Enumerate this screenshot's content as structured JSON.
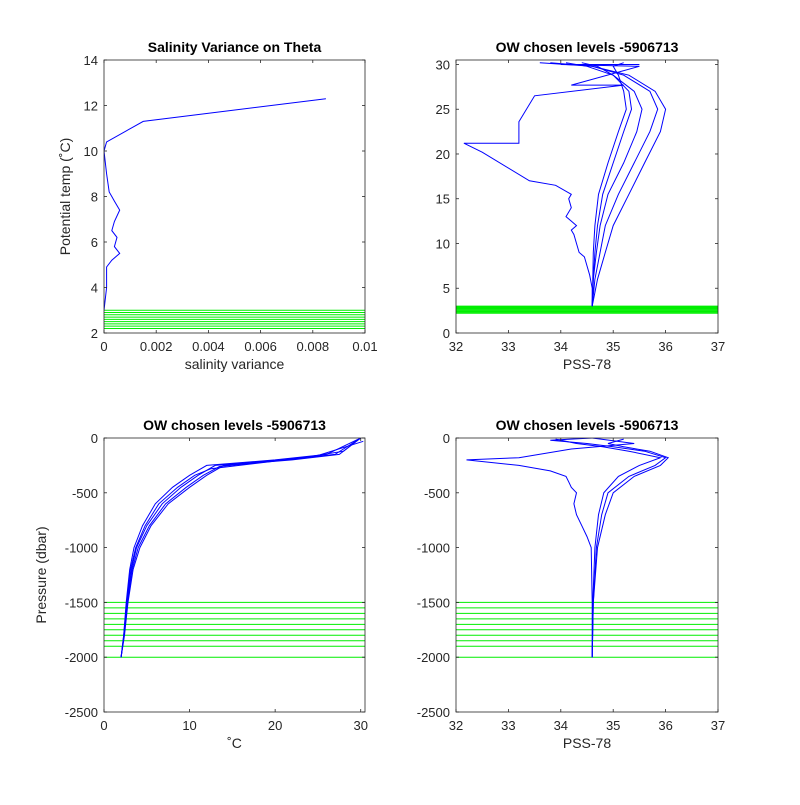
{
  "figure": {
    "panels": [
      {
        "title": "Salinity Variance on Theta",
        "xlabel": "salinity variance",
        "ylabel": "Potential temp (˚C)"
      },
      {
        "title": "OW chosen levels -5906713",
        "xlabel": "PSS-78",
        "ylabel": ""
      },
      {
        "title": "OW chosen levels -5906713",
        "xlabel": "˚C",
        "ylabel": "Pressure (dbar)"
      },
      {
        "title": "OW chosen levels -5906713",
        "xlabel": "PSS-78",
        "ylabel": ""
      }
    ]
  },
  "colors": {
    "profile": "#0000ff",
    "levels": "#00ee00",
    "axes": "#262626"
  },
  "chart_data": [
    {
      "type": "line",
      "title": "Salinity Variance on Theta",
      "xlabel": "salinity variance",
      "ylabel": "Potential temp (˚C)",
      "xlim": [
        0,
        0.01
      ],
      "ylim": [
        2,
        14
      ],
      "xticks": [
        0,
        0.002,
        0.004,
        0.006,
        0.008,
        0.01
      ],
      "xticklabels": [
        "0",
        "0.002",
        "0.004",
        "0.006",
        "0.008",
        "0.01"
      ],
      "yticks": [
        2,
        4,
        6,
        8,
        10,
        12,
        14
      ],
      "yticklabels": [
        "2",
        "4",
        "6",
        "8",
        "10",
        "12",
        "14"
      ],
      "grid": false,
      "series": [
        {
          "x": [
            0.0085,
            0.0015,
            0.0001,
            0.0,
            0.0001,
            0.0002,
            0.0003,
            0.0004,
            0.0006,
            0.0004,
            0.0003,
            0.0005,
            0.0004,
            0.0006,
            0.0003,
            0.0001,
            0.0001,
            0.0
          ],
          "y": [
            12.3,
            11.3,
            10.4,
            10.0,
            9.0,
            8.2,
            8.0,
            7.8,
            7.4,
            6.9,
            6.5,
            6.2,
            5.8,
            5.5,
            5.2,
            4.9,
            4.0,
            3.0
          ]
        }
      ],
      "levels": [
        2.2,
        2.3,
        2.4,
        2.5,
        2.6,
        2.7,
        2.8,
        2.9,
        3.0
      ]
    },
    {
      "type": "line",
      "title": "OW chosen levels -5906713",
      "xlabel": "PSS-78",
      "ylabel": "",
      "xlim": [
        32,
        37
      ],
      "ylim": [
        0,
        30.5
      ],
      "xticks": [
        32,
        33,
        34,
        35,
        36,
        37
      ],
      "xticklabels": [
        "32",
        "33",
        "34",
        "35",
        "36",
        "37"
      ],
      "yticks": [
        0,
        5,
        10,
        15,
        20,
        25,
        30
      ],
      "yticklabels": [
        "0",
        "5",
        "10",
        "15",
        "20",
        "25",
        "30"
      ],
      "grid": false,
      "series": [
        {
          "x": [
            34.6,
            34.6,
            34.55,
            34.5,
            34.45,
            34.35,
            34.3,
            34.25,
            34.2,
            34.3,
            34.2,
            34.1,
            34.2,
            34.15,
            34.2,
            33.9,
            33.4,
            32.5,
            32.15,
            33.2,
            33.2,
            33.5,
            35.2,
            34.2,
            35.5,
            34.0,
            35.5
          ],
          "y": [
            3.0,
            5.0,
            6.5,
            7.5,
            8.5,
            9.0,
            10.0,
            11.0,
            11.5,
            12.0,
            12.5,
            13.0,
            14.0,
            15.0,
            15.5,
            16.5,
            17.0,
            20.2,
            21.2,
            21.2,
            23.6,
            26.5,
            27.7,
            27.7,
            29.8,
            30.0,
            30.0
          ]
        },
        {
          "x": [
            34.6,
            34.7,
            34.85,
            35.0,
            35.3,
            35.6,
            35.9,
            36.0,
            35.8,
            35.3,
            34.6,
            33.6
          ],
          "y": [
            3.0,
            6.0,
            9.0,
            12.0,
            15.5,
            19.0,
            22.5,
            25.0,
            27.0,
            28.8,
            29.8,
            30.2
          ]
        },
        {
          "x": [
            34.6,
            34.65,
            34.75,
            34.85,
            35.1,
            35.4,
            35.7,
            35.85,
            35.7,
            35.2,
            34.6,
            33.8
          ],
          "y": [
            3.0,
            6.0,
            9.0,
            12.0,
            15.5,
            19.0,
            22.5,
            25.0,
            27.0,
            28.8,
            29.8,
            30.2
          ]
        },
        {
          "x": [
            34.6,
            34.62,
            34.68,
            34.75,
            34.9,
            35.2,
            35.45,
            35.55,
            35.4,
            35.0,
            34.5,
            34.1
          ],
          "y": [
            3.0,
            6.0,
            9.0,
            12.0,
            15.5,
            19.0,
            22.5,
            25.0,
            27.0,
            28.8,
            29.8,
            30.2
          ]
        },
        {
          "x": [
            34.6,
            34.62,
            34.65,
            34.7,
            34.8,
            35.0,
            35.2,
            35.35,
            35.3,
            35.0,
            34.7,
            34.4
          ],
          "y": [
            3.0,
            6.0,
            9.0,
            12.0,
            15.5,
            19.0,
            22.5,
            25.0,
            27.0,
            28.8,
            29.8,
            30.2
          ]
        },
        {
          "x": [
            34.6,
            34.61,
            34.62,
            34.65,
            34.72,
            34.9,
            35.1,
            35.25,
            35.2,
            35.1,
            35.0,
            35.2
          ],
          "y": [
            3.0,
            6.0,
            9.0,
            12.0,
            15.5,
            19.0,
            22.5,
            25.0,
            27.0,
            28.8,
            29.8,
            30.2
          ]
        }
      ],
      "levels": [
        2.2,
        2.3,
        2.4,
        2.5,
        2.6,
        2.7,
        2.8,
        2.9,
        3.0
      ]
    },
    {
      "type": "line",
      "title": "OW chosen levels -5906713",
      "xlabel": "˚C",
      "ylabel": "Pressure (dbar)",
      "xlim": [
        0,
        30.5
      ],
      "ylim": [
        -2500,
        0
      ],
      "xticks": [
        0,
        10,
        20,
        30
      ],
      "xticklabels": [
        "0",
        "10",
        "20",
        "30"
      ],
      "yticks": [
        -2500,
        -2000,
        -1500,
        -1000,
        -500,
        0
      ],
      "yticklabels": [
        "-2500",
        "-2000",
        "-1500",
        "-1000",
        "-500",
        "0"
      ],
      "grid": false,
      "series": [
        {
          "x": [
            2.0,
            2.3,
            2.6,
            3.0,
            3.5,
            4.5,
            6.0,
            8.0,
            10.0,
            12.0,
            20.0,
            26.0,
            30.0
          ],
          "y": [
            -2000,
            -1800,
            -1500,
            -1200,
            -1000,
            -800,
            -600,
            -450,
            -340,
            -250,
            -200,
            -150,
            0
          ]
        },
        {
          "x": [
            2.0,
            2.35,
            2.7,
            3.2,
            3.8,
            5.0,
            6.8,
            9.0,
            11.0,
            13.0,
            21.0,
            27.0,
            30.0
          ],
          "y": [
            -2000,
            -1800,
            -1500,
            -1200,
            -1000,
            -800,
            -600,
            -450,
            -340,
            -250,
            -200,
            -150,
            0
          ]
        },
        {
          "x": [
            2.0,
            2.4,
            2.8,
            3.4,
            4.2,
            5.5,
            7.5,
            10.0,
            12.0,
            14.0,
            22.0,
            27.5,
            30.0
          ],
          "y": [
            -2000,
            -1800,
            -1500,
            -1200,
            -1000,
            -800,
            -600,
            -450,
            -340,
            -250,
            -200,
            -150,
            0
          ]
        },
        {
          "x": [
            2.0,
            2.3,
            2.65,
            3.1,
            3.7,
            4.8,
            6.4,
            8.6,
            10.6,
            12.5,
            19.0,
            25.0,
            30.3
          ],
          "y": [
            -2000,
            -1800,
            -1500,
            -1200,
            -1000,
            -800,
            -600,
            -450,
            -340,
            -280,
            -220,
            -160,
            -30
          ]
        },
        {
          "x": [
            2.0,
            2.35,
            2.75,
            3.3,
            4.0,
            5.3,
            7.2,
            9.6,
            11.6,
            13.5,
            22.5,
            28.0,
            30.0
          ],
          "y": [
            -2000,
            -1800,
            -1500,
            -1200,
            -1000,
            -800,
            -600,
            -450,
            -340,
            -260,
            -190,
            -120,
            0
          ]
        }
      ],
      "levels": [
        -1500,
        -1550,
        -1600,
        -1650,
        -1700,
        -1750,
        -1800,
        -1850,
        -1900,
        -2000
      ]
    },
    {
      "type": "line",
      "title": "OW chosen levels -5906713",
      "xlabel": "PSS-78",
      "ylabel": "",
      "xlim": [
        32,
        37
      ],
      "ylim": [
        -2500,
        0
      ],
      "xticks": [
        32,
        33,
        34,
        35,
        36,
        37
      ],
      "xticklabels": [
        "32",
        "33",
        "34",
        "35",
        "36",
        "37"
      ],
      "yticks": [
        -2500,
        -2000,
        -1500,
        -1000,
        -500,
        0
      ],
      "yticklabels": [
        "-2500",
        "-2000",
        "-1500",
        "-1000",
        "-500",
        "0"
      ],
      "grid": false,
      "series": [
        {
          "x": [
            34.6,
            34.6,
            34.58,
            34.5,
            34.4,
            34.3,
            34.25,
            34.3,
            34.2,
            34.15,
            34.1,
            33.8,
            33.2,
            32.2,
            33.2,
            34.2,
            35.4,
            34.6
          ],
          "y": [
            -2000,
            -1500,
            -1000,
            -900,
            -800,
            -700,
            -600,
            -500,
            -450,
            -400,
            -350,
            -300,
            -250,
            -200,
            -180,
            -100,
            -50,
            0
          ]
        },
        {
          "x": [
            34.6,
            34.62,
            34.68,
            34.78,
            34.9,
            35.3,
            35.8,
            36.0,
            35.6,
            35.0,
            34.5,
            33.8,
            34.6
          ],
          "y": [
            -2000,
            -1500,
            -1000,
            -700,
            -500,
            -350,
            -250,
            -180,
            -120,
            -80,
            -50,
            -20,
            0
          ]
        },
        {
          "x": [
            34.6,
            34.61,
            34.65,
            34.72,
            34.82,
            35.1,
            35.5,
            35.9,
            35.3,
            34.8,
            34.3,
            33.9
          ],
          "y": [
            -2000,
            -1500,
            -1000,
            -700,
            -500,
            -350,
            -250,
            -180,
            -120,
            -80,
            -50,
            -10
          ]
        },
        {
          "x": [
            34.6,
            34.62,
            34.7,
            34.85,
            35.0,
            35.4,
            35.9,
            36.05,
            35.7,
            35.2,
            34.9,
            35.2
          ],
          "y": [
            -2000,
            -1500,
            -1000,
            -700,
            -500,
            -350,
            -250,
            -180,
            -120,
            -80,
            -50,
            -10
          ]
        }
      ],
      "levels": [
        -1500,
        -1550,
        -1600,
        -1650,
        -1700,
        -1750,
        -1800,
        -1850,
        -1900,
        -2000
      ]
    }
  ]
}
